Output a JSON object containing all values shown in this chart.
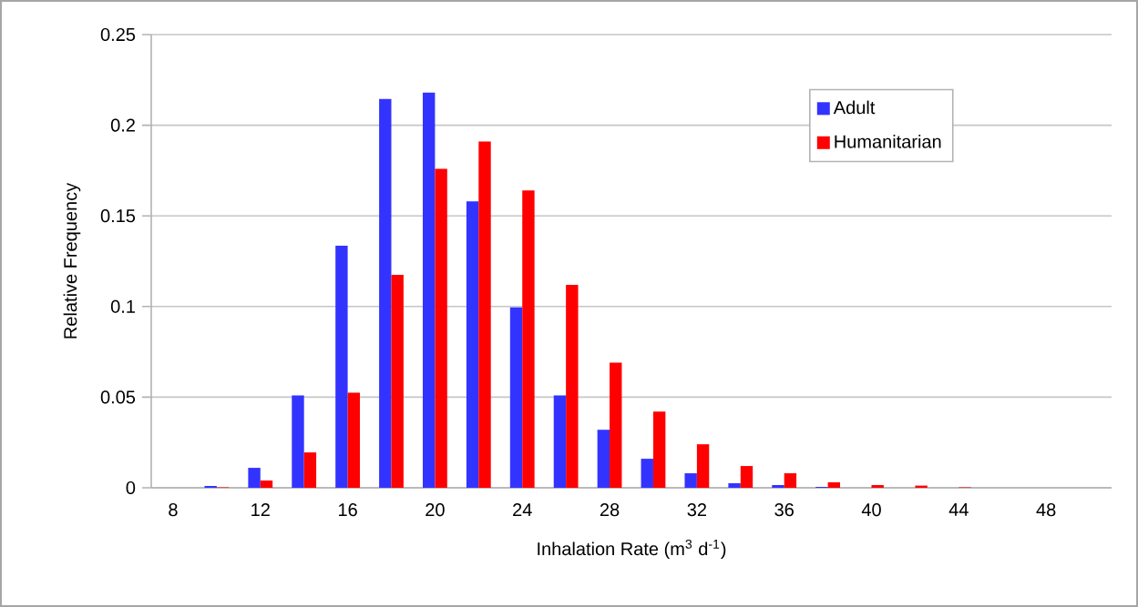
{
  "chart_data": {
    "type": "bar",
    "xlabel": "Inhalation Rate (m$^{3}$ d$^{-1}$)",
    "ylabel": "Relative Frequency",
    "categories": [
      "8",
      null,
      "12",
      null,
      "16",
      null,
      "20",
      null,
      "24",
      null,
      "28",
      null,
      "32",
      null,
      "36",
      null,
      "40",
      null,
      "44",
      null,
      "48",
      null
    ],
    "series": [
      {
        "name": "Adult",
        "color": "#3333ff",
        "values": [
          0,
          0.001,
          0.011,
          0.051,
          0.1335,
          0.2145,
          0.218,
          0.158,
          0.0995,
          0.051,
          0.032,
          0.016,
          0.008,
          0.0025,
          0.0015,
          0.0005,
          0,
          0,
          0,
          0,
          0,
          0
        ]
      },
      {
        "name": "Humanitarian",
        "color": "#ff0000",
        "values": [
          0,
          0.0003,
          0.004,
          0.0195,
          0.0525,
          0.1175,
          0.176,
          0.191,
          0.164,
          0.112,
          0.069,
          0.042,
          0.024,
          0.012,
          0.008,
          0.003,
          0.0015,
          0.0012,
          0.0003,
          0,
          0,
          0
        ]
      }
    ],
    "ylim": [
      0,
      0.25
    ],
    "yticks": [
      0,
      0.05,
      0.1,
      0.15,
      0.2,
      0.25
    ],
    "grid": "y",
    "legend": "top right"
  }
}
